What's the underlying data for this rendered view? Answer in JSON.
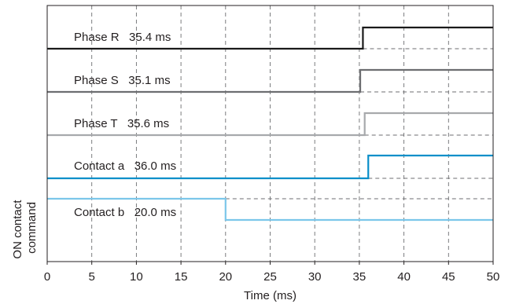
{
  "chart_data": {
    "type": "line",
    "xlabel": "Time (ms)",
    "ylabel": [
      "ON contact",
      "command"
    ],
    "xlim": [
      0,
      50
    ],
    "x_ticks": [
      "0",
      "5",
      "10",
      "15",
      "20",
      "25",
      "30",
      "35",
      "40",
      "45",
      "50"
    ],
    "grid": true,
    "series": [
      {
        "name": "Phase R",
        "label": "Phase R   35.4 ms",
        "step_time_ms": 35.4,
        "direction": "rise",
        "color": "#1a1a1a"
      },
      {
        "name": "Phase S",
        "label": "Phase S   35.1 ms",
        "step_time_ms": 35.1,
        "direction": "rise",
        "color": "#6d6e71"
      },
      {
        "name": "Phase T",
        "label": "Phase T   35.6 ms",
        "step_time_ms": 35.6,
        "direction": "rise",
        "color": "#a7a9ac"
      },
      {
        "name": "Contact a",
        "label": "Contact a   36.0 ms",
        "step_time_ms": 36.0,
        "direction": "rise",
        "color": "#0a8fc9"
      },
      {
        "name": "Contact b",
        "label": "Contact b   20.0 ms",
        "step_time_ms": 20.0,
        "direction": "fall",
        "color": "#7cc7ea"
      }
    ]
  }
}
